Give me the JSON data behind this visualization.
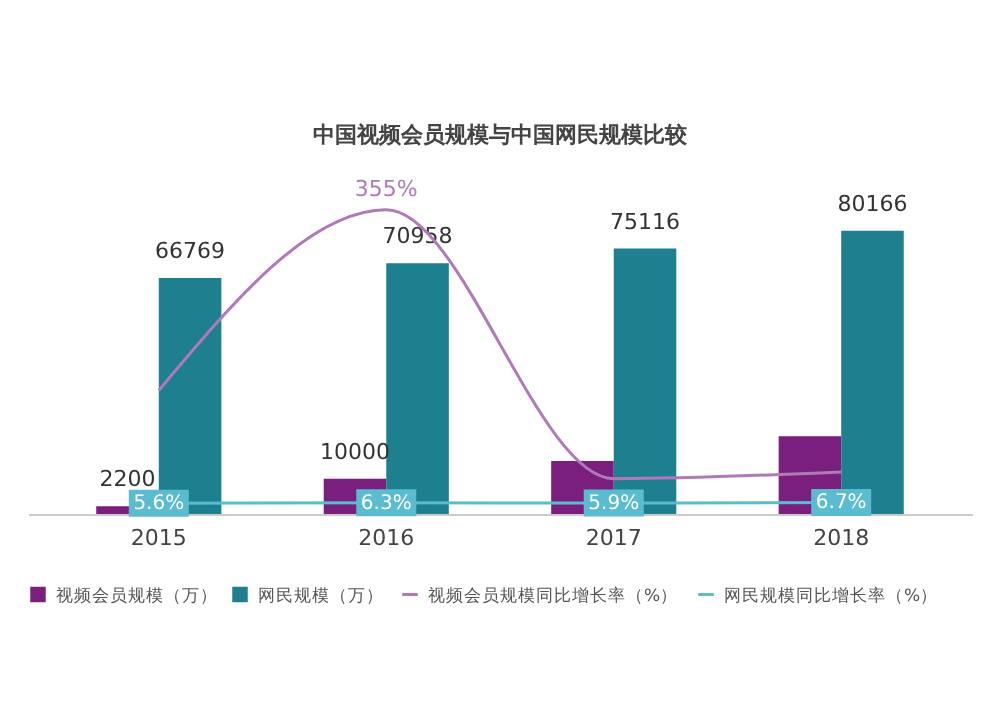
{
  "chart_data": {
    "type": "bar",
    "title": "中国视频会员规模与中国网民规模比较",
    "categories": [
      "2015",
      "2016",
      "2017",
      "2018"
    ],
    "legend": "bottom",
    "series": [
      {
        "name": "视频会员规模（万）",
        "color": "#7b1f7f",
        "values": [
          2200,
          10000,
          15000,
          22000
        ],
        "value_labels": [
          "2200",
          "10000",
          null,
          null
        ]
      },
      {
        "name": "网民规模（万）",
        "color": "#1e7f8e",
        "values": [
          66769,
          70958,
          75116,
          80166
        ],
        "value_labels": [
          "66769",
          "70958",
          "75116",
          "80166"
        ]
      },
      {
        "name": "视频会员规模同比增长率（%）",
        "type": "line",
        "axis": "y2",
        "color": "#b07ab8",
        "values": [
          140,
          355,
          35,
          43
        ],
        "value_labels": [
          null,
          "355%",
          null,
          null
        ]
      },
      {
        "name": "网民规模同比增长率（%）",
        "type": "line",
        "axis": "y2",
        "color": "#5bbcd0",
        "marker": "square",
        "values": [
          5.6,
          6.3,
          5.9,
          6.7
        ],
        "value_labels": [
          "5.6%",
          "6.3%",
          "5.9%",
          "6.7%"
        ]
      }
    ]
  }
}
